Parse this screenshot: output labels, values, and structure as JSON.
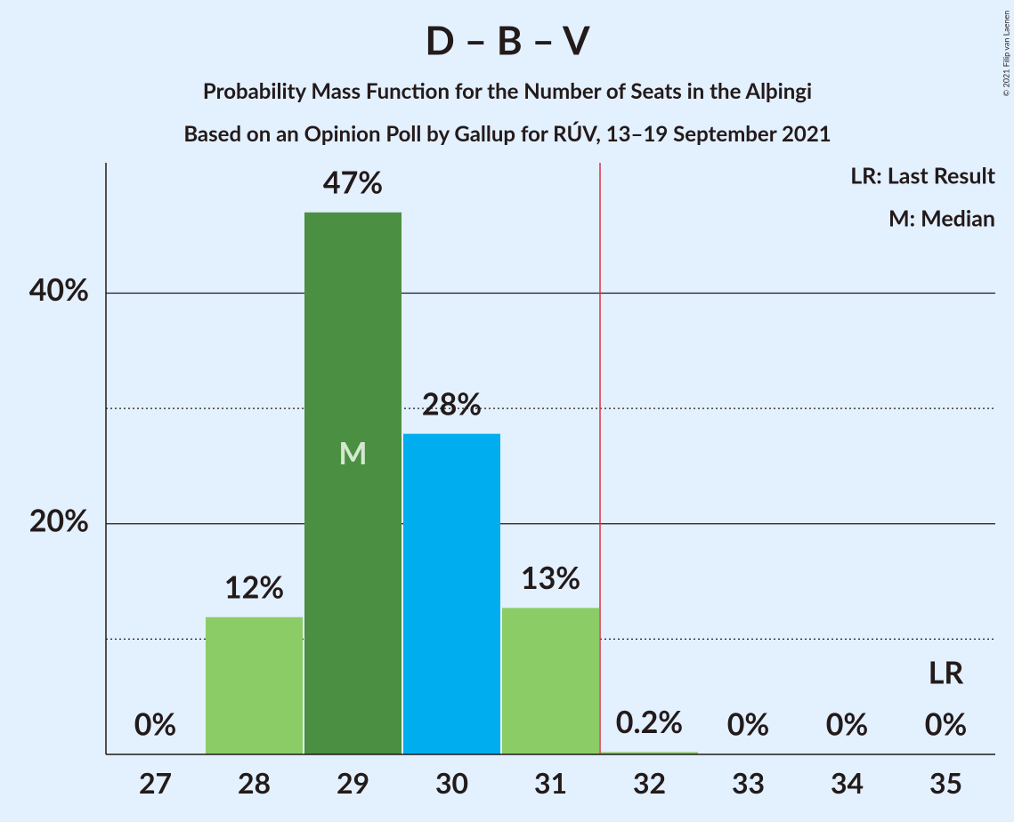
{
  "chart_data": {
    "type": "bar",
    "title": "D – B – V",
    "subtitle": "Probability Mass Function for the Number of Seats in the Alþingi",
    "subtitle2": "Based on an Opinion Poll by Gallup for RÚV, 13–19 September 2021",
    "legend": [
      "LR: Last Result",
      "M: Median"
    ],
    "copyright": "© 2021 Filip van Laenen",
    "categories": [
      27,
      28,
      29,
      30,
      31,
      32,
      33,
      34,
      35
    ],
    "values": [
      0,
      11.9,
      47.0,
      27.8,
      12.7,
      0.2,
      0,
      0,
      0
    ],
    "value_labels": [
      "0%",
      "12%",
      "47%",
      "28%",
      "13%",
      "0.2%",
      "0%",
      "0%",
      "0%"
    ],
    "colors": [
      "#8ccc66",
      "#8ccc66",
      "#4a8f42",
      "#00aeef",
      "#8ccc66",
      "#8ccc66",
      "#8ccc66",
      "#8ccc66",
      "#8ccc66"
    ],
    "median_label": "M",
    "median_category": 29,
    "last_result_label": "LR",
    "last_result_category": 35,
    "ylim": [
      0,
      51.3
    ],
    "yticks": [
      {
        "value": 20,
        "label": "20%"
      },
      {
        "value": 40,
        "label": "40%"
      }
    ],
    "minor_yticks": [
      10,
      30
    ],
    "grid": true
  }
}
